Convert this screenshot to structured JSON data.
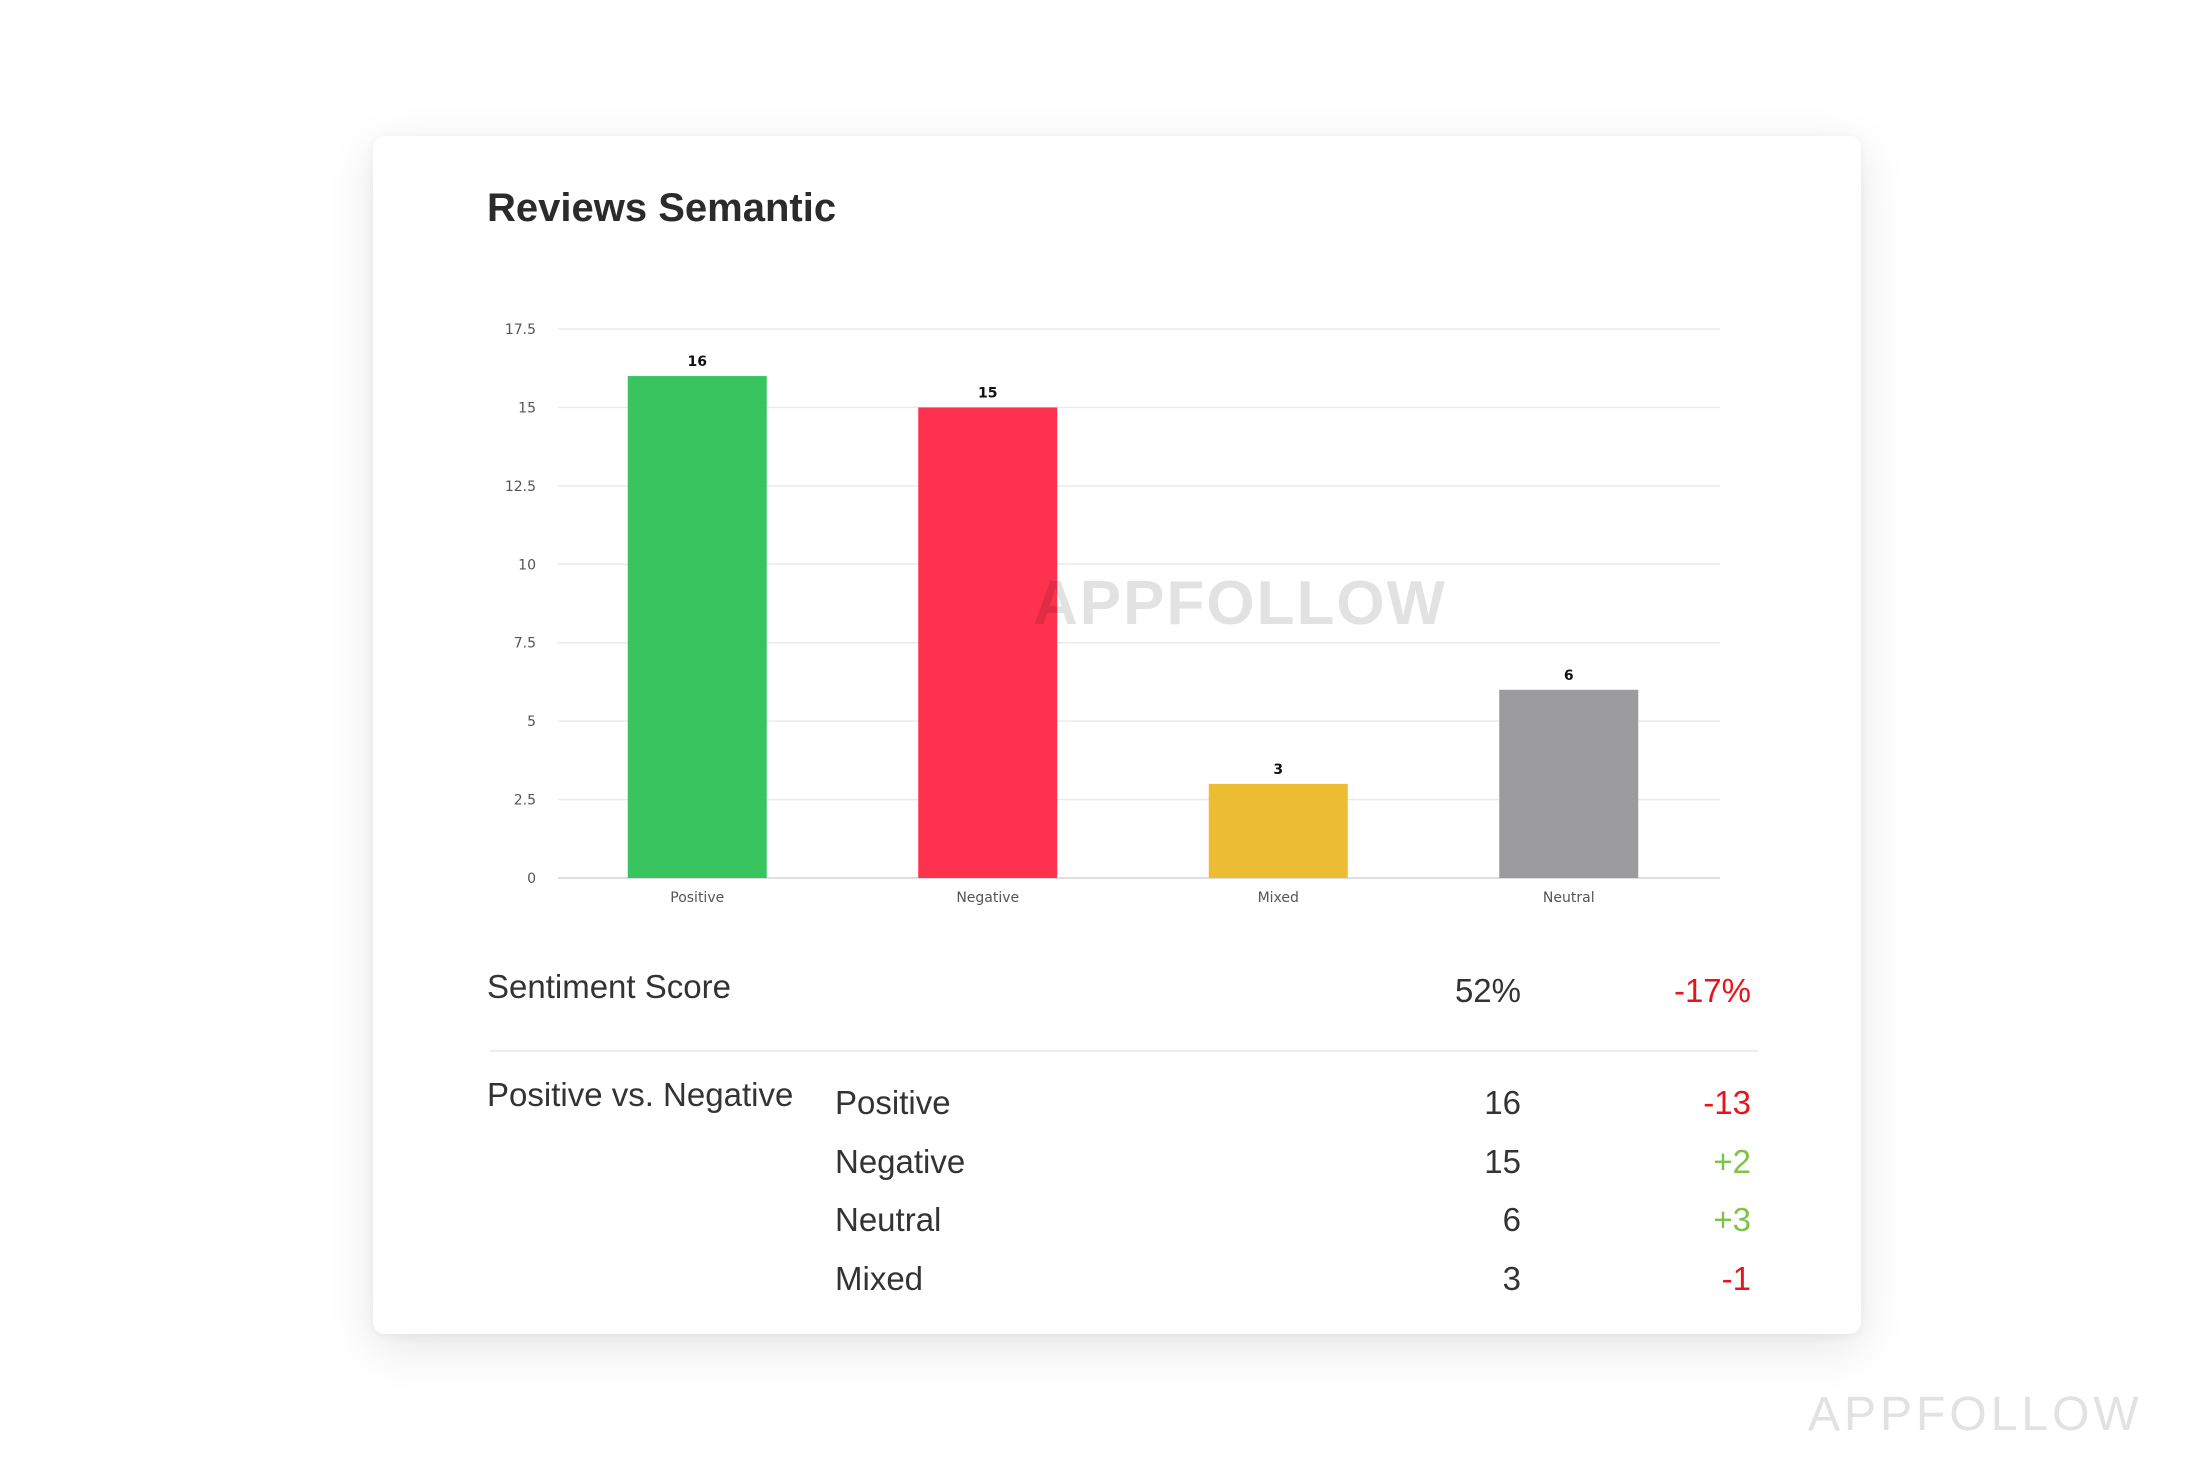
{
  "title": "Reviews Semantic",
  "chart_data": {
    "type": "bar",
    "categories": [
      "Positive",
      "Negative",
      "Mixed",
      "Neutral"
    ],
    "values": [
      16,
      15,
      3,
      6
    ],
    "colors": [
      "#38c45f",
      "#fe324e",
      "#ecbc33",
      "#9b9a9c"
    ],
    "yticks": [
      "0",
      "2.5",
      "5",
      "7.5",
      "10",
      "12.5",
      "15",
      "17.5"
    ],
    "ylim": [
      0,
      17.5
    ],
    "grid": true,
    "data_labels": true
  },
  "chart_watermark": "APPFOLLOW",
  "sentiment": {
    "label": "Sentiment Score",
    "value": "52%",
    "delta": "-17%",
    "delta_color": "#e8141b"
  },
  "breakdown": {
    "label": "Positive vs. Negative",
    "rows": [
      {
        "name": "Positive",
        "value": "16",
        "delta": "-13",
        "delta_color": "#e8141b"
      },
      {
        "name": "Negative",
        "value": "15",
        "delta": "+2",
        "delta_color": "#7dc24a"
      },
      {
        "name": "Neutral",
        "value": "6",
        "delta": "+3",
        "delta_color": "#7dc24a"
      },
      {
        "name": "Mixed",
        "value": "3",
        "delta": "-1",
        "delta_color": "#e8141b"
      }
    ]
  },
  "brand": "APPFOLLOW"
}
